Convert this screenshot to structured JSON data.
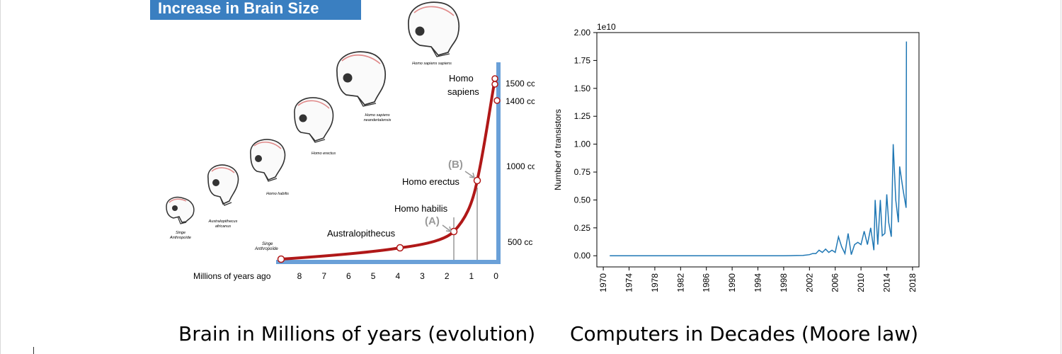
{
  "captions": {
    "left": "Brain in Millions of years (evolution)",
    "right": "Computers in Decades (Moore law)"
  },
  "evolution": {
    "banner": "Increase in Brain Size",
    "xlabel": "Millions of years ago",
    "x_ticks": [
      "8",
      "7",
      "6",
      "5",
      "4",
      "3",
      "2",
      "1",
      "0"
    ],
    "cc_labels": [
      "500 cc",
      "1000 cc",
      "1400 cc",
      "1500 cc"
    ],
    "species_labels": [
      "Australopithecus",
      "Homo habilis",
      "Homo erectus",
      "Homo sapiens"
    ],
    "markers": [
      "(A)",
      "(B)"
    ],
    "skull_captions": [
      "Singe Anthropoide",
      "Australopithecus africanus",
      "Homo habilis",
      "Homo erectus",
      "Homo sapiens neandertalensis",
      "Homo sapiens sapiens"
    ],
    "start_label": "Singe Anthropoide",
    "colors": {
      "banner": "#3a7fc1",
      "curve": "#b01818",
      "axis": "#6aa0d8"
    }
  },
  "chart_data": {
    "type": "line",
    "title": "",
    "xlabel": "",
    "ylabel": "Number of transistors",
    "exponent_label": "1e10",
    "x_ticks": [
      1970,
      1974,
      1978,
      1982,
      1986,
      1990,
      1994,
      1998,
      2002,
      2006,
      2010,
      2014,
      2018
    ],
    "y_ticks": [
      0,
      0.25,
      0.5,
      0.75,
      1.0,
      1.25,
      1.5,
      1.75,
      2.0
    ],
    "y_tick_labels": [
      "0.00",
      "0.25",
      "0.50",
      "0.75",
      "1.00",
      "1.25",
      "1.50",
      "1.75",
      "2.00"
    ],
    "xlim": [
      1969,
      2019
    ],
    "ylim": [
      -0.1,
      2.0
    ],
    "color": "#1f77b4",
    "series": [
      {
        "x": [
          1971,
          1975,
          1980,
          1985,
          1990,
          1995,
          1998,
          1999,
          2000,
          2001,
          2002,
          2002.5,
          2003,
          2003.5,
          2004,
          2004.5,
          2005,
          2005.5,
          2006,
          2006.5,
          2007,
          2007.5,
          2008,
          2008.5,
          2009,
          2009.5,
          2010,
          2010.5,
          2011,
          2011.5,
          2012,
          2012.2,
          2012.6,
          2013,
          2013.3,
          2013.7,
          2014,
          2014.3,
          2014.7,
          2015,
          2015.4,
          2015.8,
          2016,
          2016.5,
          2017,
          2017.05
        ],
        "y": [
          0,
          0,
          0,
          0,
          0,
          0,
          0,
          0.001,
          0.002,
          0.003,
          0.01,
          0.02,
          0.02,
          0.05,
          0.03,
          0.06,
          0.03,
          0.05,
          0.03,
          0.17,
          0.08,
          0.02,
          0.2,
          0.01,
          0.1,
          0.12,
          0.1,
          0.22,
          0.1,
          0.25,
          0.05,
          0.5,
          0.1,
          0.5,
          0.18,
          0.2,
          0.55,
          0.3,
          0.17,
          1.0,
          0.5,
          0.3,
          0.8,
          0.6,
          0.43,
          1.92
        ]
      }
    ]
  }
}
